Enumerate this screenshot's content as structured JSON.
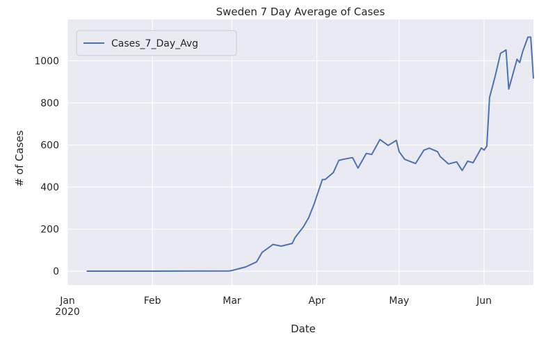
{
  "chart_data": {
    "type": "line",
    "title": "Sweden 7 Day Average of Cases",
    "xlabel": "Date",
    "ylabel": "# of Cases",
    "xlim": [
      "2020-01-01",
      "2020-06-19"
    ],
    "ylim": [
      -66,
      1197
    ],
    "grid": true,
    "legend": {
      "placement": "top-left",
      "entries": [
        "Cases_7_Day_Avg"
      ]
    },
    "x_ticks": [
      {
        "date": "2020-01-01",
        "label": "Jan",
        "sublabel": "2020"
      },
      {
        "date": "2020-02-01",
        "label": "Feb"
      },
      {
        "date": "2020-03-01",
        "label": "Mar"
      },
      {
        "date": "2020-04-01",
        "label": "Apr"
      },
      {
        "date": "2020-05-01",
        "label": "May"
      },
      {
        "date": "2020-06-01",
        "label": "Jun"
      }
    ],
    "y_ticks": [
      0,
      200,
      400,
      600,
      800,
      1000
    ],
    "series": [
      {
        "name": "Cases_7_Day_Avg",
        "color": "#4c72b0",
        "points": [
          [
            "2020-01-08",
            0
          ],
          [
            "2020-02-01",
            0
          ],
          [
            "2020-02-29",
            1
          ],
          [
            "2020-03-01",
            3
          ],
          [
            "2020-03-06",
            20
          ],
          [
            "2020-03-10",
            44
          ],
          [
            "2020-03-12",
            89
          ],
          [
            "2020-03-16",
            127
          ],
          [
            "2020-03-19",
            119
          ],
          [
            "2020-03-23",
            132
          ],
          [
            "2020-03-24",
            159
          ],
          [
            "2020-03-27",
            209
          ],
          [
            "2020-03-29",
            254
          ],
          [
            "2020-03-31",
            320
          ],
          [
            "2020-04-03",
            436
          ],
          [
            "2020-04-04",
            436
          ],
          [
            "2020-04-07",
            469
          ],
          [
            "2020-04-09",
            527
          ],
          [
            "2020-04-11",
            533
          ],
          [
            "2020-04-14",
            540
          ],
          [
            "2020-04-16",
            490
          ],
          [
            "2020-04-19",
            560
          ],
          [
            "2020-04-21",
            555
          ],
          [
            "2020-04-24",
            626
          ],
          [
            "2020-04-27",
            598
          ],
          [
            "2020-04-30",
            622
          ],
          [
            "2020-05-01",
            568
          ],
          [
            "2020-05-03",
            532
          ],
          [
            "2020-05-05",
            522
          ],
          [
            "2020-05-07",
            512
          ],
          [
            "2020-05-10",
            575
          ],
          [
            "2020-05-12",
            585
          ],
          [
            "2020-05-15",
            568
          ],
          [
            "2020-05-16",
            545
          ],
          [
            "2020-05-19",
            510
          ],
          [
            "2020-05-22",
            520
          ],
          [
            "2020-05-24",
            479
          ],
          [
            "2020-05-26",
            523
          ],
          [
            "2020-05-28",
            516
          ],
          [
            "2020-05-31",
            586
          ],
          [
            "2020-06-01",
            576
          ],
          [
            "2020-06-02",
            595
          ],
          [
            "2020-06-03",
            826
          ],
          [
            "2020-06-05",
            925
          ],
          [
            "2020-06-07",
            1036
          ],
          [
            "2020-06-09",
            1052
          ],
          [
            "2020-06-10",
            866
          ],
          [
            "2020-06-13",
            1008
          ],
          [
            "2020-06-14",
            992
          ],
          [
            "2020-06-15",
            1041
          ],
          [
            "2020-06-17",
            1113
          ],
          [
            "2020-06-18",
            1113
          ],
          [
            "2020-06-19",
            916
          ]
        ]
      }
    ]
  }
}
